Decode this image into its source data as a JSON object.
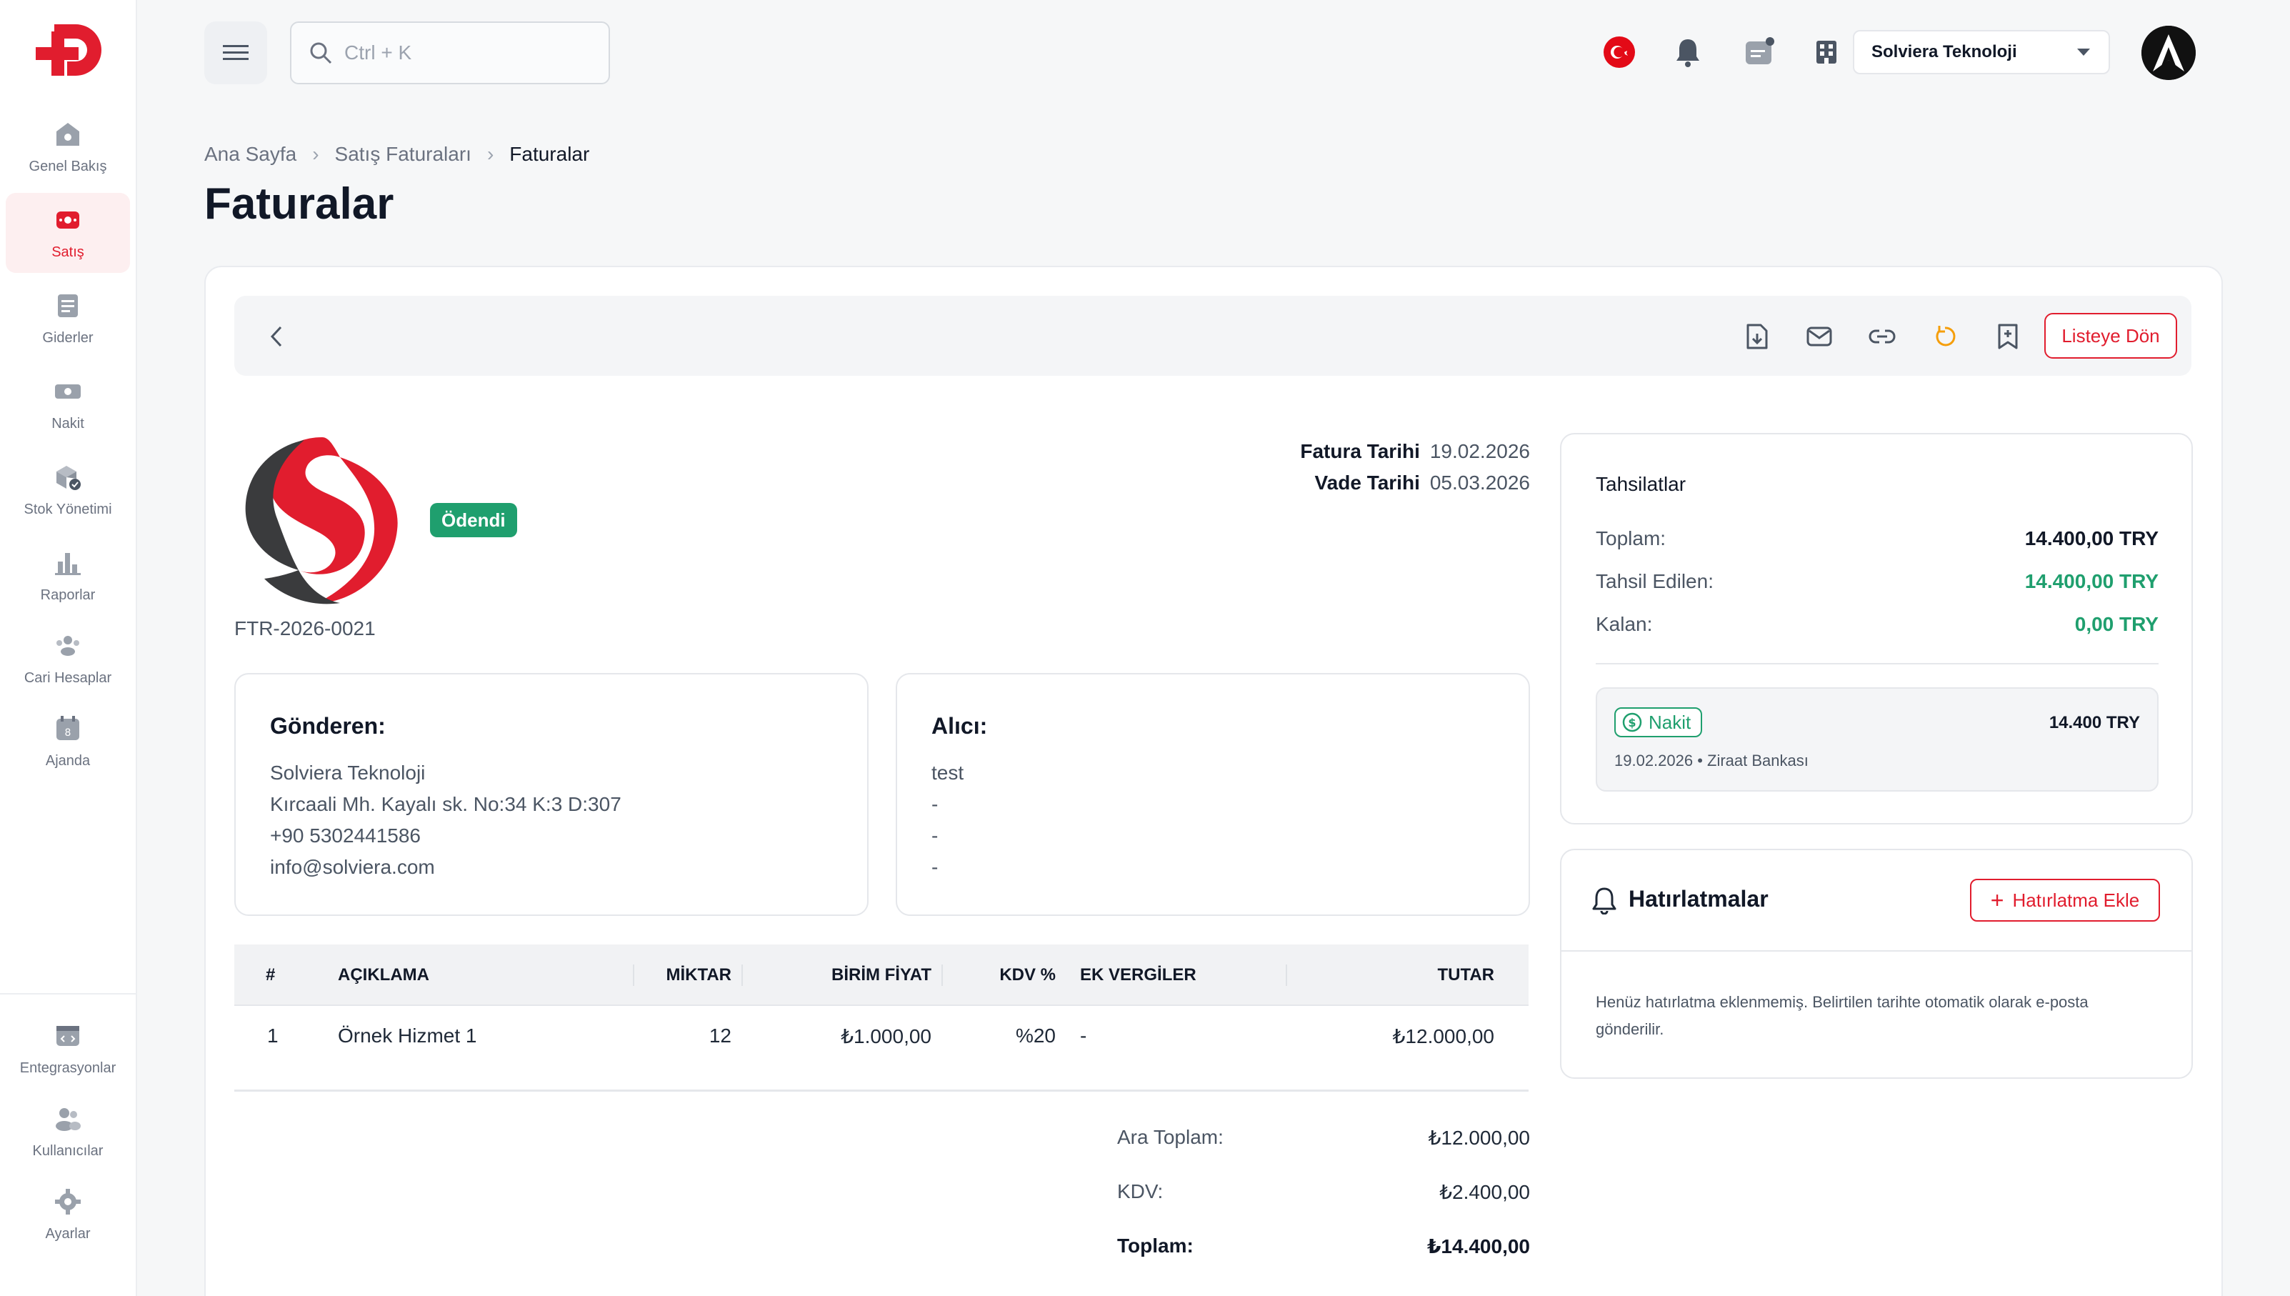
{
  "sidebar": {
    "items": [
      {
        "label": "Genel Bakış",
        "icon": "home-icon"
      },
      {
        "label": "Satış",
        "icon": "sales-icon",
        "active": true
      },
      {
        "label": "Giderler",
        "icon": "receipt-icon"
      },
      {
        "label": "Nakit",
        "icon": "cash-icon"
      },
      {
        "label": "Stok Yönetimi",
        "icon": "stock-icon"
      },
      {
        "label": "Raporlar",
        "icon": "chart-icon"
      },
      {
        "label": "Cari Hesaplar",
        "icon": "accounts-icon"
      },
      {
        "label": "Ajanda",
        "icon": "calendar-icon"
      }
    ],
    "bottom_items": [
      {
        "label": "Entegrasyonlar",
        "icon": "integration-icon"
      },
      {
        "label": "Kullanıcılar",
        "icon": "users-icon"
      },
      {
        "label": "Ayarlar",
        "icon": "settings-icon"
      }
    ]
  },
  "topbar": {
    "search_placeholder": "Ctrl + K",
    "company": "Solviera Teknoloji"
  },
  "breadcrumb": {
    "items": [
      "Ana Sayfa",
      "Satış Faturaları"
    ],
    "current": "Faturalar"
  },
  "page": {
    "title": "Faturalar"
  },
  "toolbar": {
    "back_to_list": "Listeye Dön"
  },
  "invoice": {
    "status": "Ödendi",
    "number": "FTR-2026-0021",
    "date_label": "Fatura Tarihi",
    "date": "19.02.2026",
    "due_label": "Vade Tarihi",
    "due_date": "05.03.2026",
    "sender": {
      "title": "Gönderen:",
      "lines": [
        "Solviera Teknoloji",
        "Kırcaali Mh. Kayalı sk. No:34 K:3 D:307",
        "+90 5302441586",
        "info@solviera.com"
      ]
    },
    "receiver": {
      "title": "Alıcı:",
      "lines": [
        "test",
        "-",
        "-",
        "-"
      ]
    },
    "table": {
      "headers": {
        "no": "#",
        "desc": "AÇIKLAMA",
        "qty": "MİKTAR",
        "unit": "BİRİM FİYAT",
        "vat": "KDV %",
        "extra": "EK VERGİLER",
        "total": "TUTAR"
      },
      "rows": [
        {
          "no": "1",
          "desc": "Örnek Hizmet 1",
          "qty": "12",
          "unit": "₺1.000,00",
          "vat": "%20",
          "extra": "-",
          "total": "₺12.000,00"
        }
      ]
    },
    "summary": {
      "subtotal_label": "Ara Toplam:",
      "subtotal": "₺12.000,00",
      "vat_label": "KDV:",
      "vat": "₺2.400,00",
      "total_label": "Toplam:",
      "total": "₺14.400,00"
    }
  },
  "collections": {
    "title": "Tahsilatlar",
    "total_label": "Toplam:",
    "total": "14.400,00 TRY",
    "collected_label": "Tahsil Edilen:",
    "collected": "14.400,00 TRY",
    "remaining_label": "Kalan:",
    "remaining": "0,00 TRY",
    "entry": {
      "method": "Nakit",
      "amount": "14.400 TRY",
      "meta": "19.02.2026 • Ziraat Bankası"
    }
  },
  "reminders": {
    "title": "Hatırlatmalar",
    "add_label": "Hatırlatma Ekle",
    "empty_text": "Henüz hatırlatma eklenmemiş. Belirtilen tarihte otomatik olarak e-posta gönderilir."
  },
  "colors": {
    "accent": "#e11d2e",
    "success": "#1f9f6e",
    "background": "#f6f7f8"
  }
}
